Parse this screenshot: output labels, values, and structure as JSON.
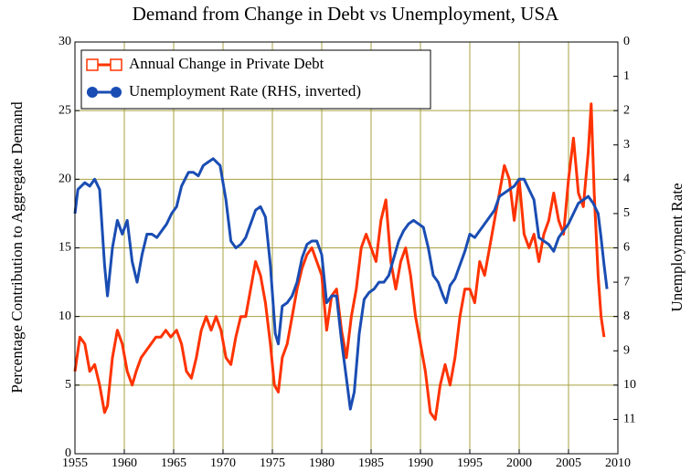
{
  "chart_data": {
    "type": "line",
    "title": "Demand from Change in Debt vs Unemployment, USA",
    "y_label": "Percentage Contribution to Aggregate Demand",
    "y2_label": "Unemployment Rate",
    "xlim": [
      1955,
      2010
    ],
    "xticks": [
      1955,
      1960,
      1965,
      1970,
      1975,
      1980,
      1985,
      1990,
      1995,
      2000,
      2005,
      2010
    ],
    "ylim": [
      0,
      30
    ],
    "yticks": [
      0,
      5,
      10,
      15,
      20,
      25,
      30
    ],
    "y2lim": [
      0,
      12
    ],
    "y2ticks": [
      0,
      1,
      2,
      3,
      4,
      5,
      6,
      7,
      8,
      9,
      10,
      11
    ],
    "y2_inverted": true,
    "grid": true,
    "legend": "upper left",
    "series": [
      {
        "name": "Annual Change in Private Debt",
        "color": "#ff3300",
        "x": [
          1955,
          1955.5,
          1956,
          1956.5,
          1957,
          1957.5,
          1958,
          1958.3,
          1958.8,
          1959.3,
          1959.8,
          1960.3,
          1960.8,
          1961.2,
          1961.7,
          1962.2,
          1962.7,
          1963.2,
          1963.7,
          1964.2,
          1964.7,
          1965.3,
          1965.8,
          1966.3,
          1966.8,
          1967.3,
          1967.8,
          1968.3,
          1968.8,
          1969.3,
          1969.8,
          1970.3,
          1970.8,
          1971.3,
          1971.8,
          1972.3,
          1972.8,
          1973.3,
          1973.8,
          1974.3,
          1974.8,
          1975.2,
          1975.6,
          1976,
          1976.5,
          1977,
          1977.5,
          1978,
          1978.5,
          1979,
          1979.5,
          1980,
          1980.5,
          1981,
          1981.5,
          1982,
          1982.5,
          1983,
          1983.5,
          1984,
          1984.5,
          1985,
          1985.5,
          1986,
          1986.5,
          1987,
          1987.5,
          1988,
          1988.5,
          1989,
          1989.5,
          1990,
          1990.5,
          1991,
          1991.5,
          1992,
          1992.5,
          1993,
          1993.5,
          1994,
          1994.5,
          1995,
          1995.5,
          1996,
          1996.5,
          1997,
          1997.5,
          1998,
          1998.5,
          1999,
          1999.5,
          2000,
          2000.5,
          2001,
          2001.5,
          2002,
          2002.5,
          2003,
          2003.5,
          2004,
          2004.5,
          2005,
          2005.5,
          2006,
          2006.5,
          2007,
          2007.3,
          2007.6,
          2008,
          2008.3,
          2008.6
        ],
        "values": [
          6,
          8.5,
          8,
          6,
          6.5,
          5,
          3,
          3.5,
          7,
          9,
          8,
          6,
          5,
          6,
          7,
          7.5,
          8,
          8.5,
          8.5,
          9,
          8.5,
          9,
          8,
          6,
          5.5,
          7,
          9,
          10,
          9,
          10,
          9,
          7,
          6.5,
          8.5,
          10,
          10,
          12,
          14,
          13,
          11,
          8,
          5,
          4.5,
          7,
          8,
          10,
          12,
          13.5,
          14.5,
          15,
          14,
          13,
          9,
          11.5,
          12,
          9,
          7,
          10,
          12,
          15,
          16,
          15,
          14,
          17,
          18.5,
          14,
          12,
          14,
          15,
          13,
          10,
          8,
          6,
          3,
          2.5,
          5,
          6.5,
          5,
          7,
          10,
          12,
          12,
          11,
          14,
          13,
          15,
          17,
          19,
          21,
          20,
          17,
          20,
          16,
          15,
          16,
          14,
          16,
          17,
          19,
          17,
          16,
          20,
          23,
          19,
          18,
          22,
          25.5,
          19,
          13,
          10,
          8.5
        ]
      },
      {
        "name": "Unemployment Rate (RHS, inverted)",
        "color": "#1a4db3",
        "axis": "y2",
        "x": [
          1955,
          1955.3,
          1956,
          1956.5,
          1957,
          1957.5,
          1958,
          1958.3,
          1958.8,
          1959.3,
          1959.8,
          1960.3,
          1960.8,
          1961.3,
          1961.8,
          1962.3,
          1962.8,
          1963.3,
          1963.8,
          1964.3,
          1964.8,
          1965.3,
          1965.8,
          1966.5,
          1967,
          1967.5,
          1968,
          1968.5,
          1969,
          1969.7,
          1970.3,
          1970.8,
          1971.3,
          1971.8,
          1972.3,
          1972.8,
          1973.3,
          1973.8,
          1974.3,
          1974.8,
          1975.3,
          1975.6,
          1976,
          1976.5,
          1977,
          1977.5,
          1978,
          1978.5,
          1979,
          1979.5,
          1980,
          1980.5,
          1981,
          1981.5,
          1982,
          1982.5,
          1982.9,
          1983.3,
          1983.8,
          1984.3,
          1984.8,
          1985.3,
          1985.8,
          1986.3,
          1986.8,
          1987.3,
          1987.8,
          1988.3,
          1988.8,
          1989.3,
          1989.8,
          1990.3,
          1990.8,
          1991.3,
          1991.8,
          1992.3,
          1992.6,
          1993,
          1993.5,
          1994,
          1994.5,
          1995,
          1995.5,
          1996,
          1996.5,
          1997,
          1997.5,
          1998,
          1998.5,
          1999,
          1999.5,
          2000,
          2000.5,
          2001,
          2001.5,
          2002,
          2002.5,
          2003,
          2003.5,
          2004,
          2004.5,
          2005,
          2005.5,
          2006,
          2006.5,
          2007,
          2007.5,
          2008,
          2008.3,
          2008.6,
          2008.9
        ],
        "values": [
          5,
          4.3,
          4.1,
          4.2,
          4,
          4.3,
          6.5,
          7.4,
          6,
          5.2,
          5.6,
          5.2,
          6.4,
          7,
          6.2,
          5.6,
          5.6,
          5.7,
          5.5,
          5.3,
          5,
          4.8,
          4.2,
          3.8,
          3.8,
          3.9,
          3.6,
          3.5,
          3.4,
          3.6,
          4.6,
          5.8,
          6,
          5.9,
          5.7,
          5.3,
          4.9,
          4.8,
          5.1,
          6.5,
          8.5,
          8.8,
          7.7,
          7.6,
          7.4,
          7,
          6.3,
          5.9,
          5.8,
          5.8,
          6.2,
          7.6,
          7.4,
          7.4,
          8.7,
          9.8,
          10.7,
          10.2,
          8.5,
          7.5,
          7.3,
          7.2,
          7,
          7,
          6.8,
          6.3,
          5.8,
          5.5,
          5.3,
          5.2,
          5.3,
          5.4,
          6,
          6.8,
          7,
          7.4,
          7.6,
          7.1,
          6.9,
          6.5,
          6.1,
          5.6,
          5.7,
          5.5,
          5.3,
          5.1,
          4.9,
          4.5,
          4.4,
          4.3,
          4.2,
          4,
          4,
          4.3,
          4.6,
          5.7,
          5.8,
          5.9,
          6.1,
          5.7,
          5.5,
          5.3,
          5,
          4.7,
          4.6,
          4.5,
          4.7,
          5,
          5.7,
          6.5,
          7.2
        ]
      }
    ]
  }
}
